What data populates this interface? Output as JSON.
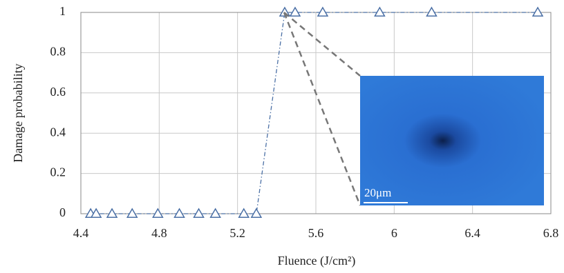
{
  "chart_data": {
    "type": "line",
    "xlabel": "Fluence (J/cm²)",
    "ylabel": "Damage probability",
    "series": [
      {
        "color": "#4a6fa5",
        "x": [
          4.45,
          4.478,
          4.559,
          4.662,
          4.793,
          4.903,
          5.002,
          5.087,
          5.232,
          5.296,
          5.441,
          5.494,
          5.635,
          5.926,
          6.191,
          6.733
        ],
        "values": [
          0,
          0,
          0,
          0,
          0,
          0,
          0,
          0,
          0,
          0,
          1,
          1,
          1,
          1,
          1,
          1
        ]
      }
    ],
    "xlim": [
      4.4,
      6.8
    ],
    "xticks": [
      4.4,
      4.8,
      5.2,
      5.6,
      6,
      6.4,
      6.8
    ],
    "ylim": [
      0,
      1
    ],
    "yticks": [
      0,
      0.2,
      0.4,
      0.6,
      0.8,
      1
    ],
    "grid": true,
    "marker": "triangle",
    "inset_label": "20μm"
  }
}
